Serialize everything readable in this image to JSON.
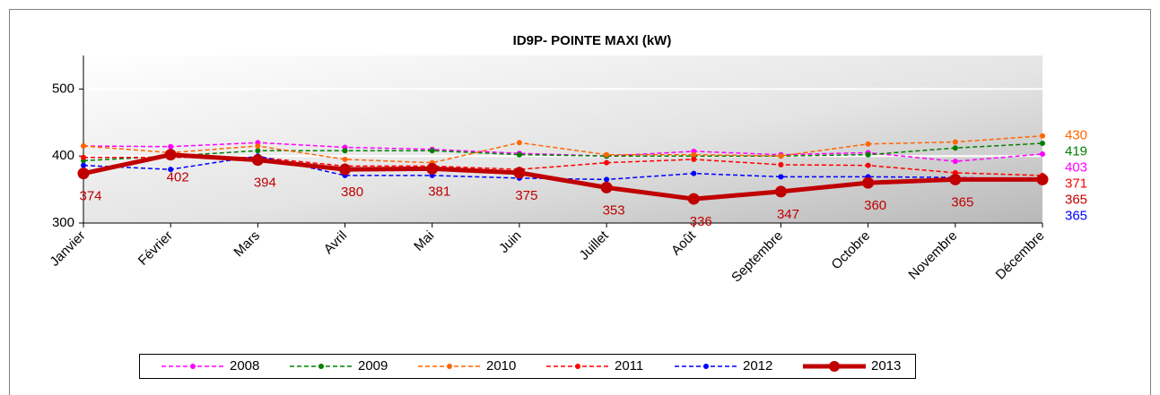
{
  "chart_data": {
    "type": "line",
    "title": "ID9P- POINTE MAXI  (kW)",
    "categories": [
      "Janvier",
      "Février",
      "Mars",
      "Avril",
      "Mai",
      "Juin",
      "Juillet",
      "Août",
      "Septembre",
      "Octobre",
      "Novembre",
      "Décembre"
    ],
    "ylim": [
      300,
      550
    ],
    "yticks": [
      300,
      400,
      500
    ],
    "grid": true,
    "legend": "bottom",
    "series": [
      {
        "name": "2008",
        "color": "#ff00ff",
        "dashed": true,
        "data_labels": "last",
        "values": [
          415,
          414,
          420,
          413,
          410,
          404,
          400,
          407,
          402,
          405,
          392,
          403
        ]
      },
      {
        "name": "2009",
        "color": "#008000",
        "dashed": true,
        "data_labels": "last",
        "values": [
          393,
          400,
          408,
          408,
          408,
          402,
          400,
          400,
          400,
          402,
          412,
          419
        ]
      },
      {
        "name": "2010",
        "color": "#ff6600",
        "dashed": true,
        "data_labels": "last",
        "values": [
          415,
          405,
          415,
          395,
          390,
          420,
          402,
          402,
          400,
          418,
          421,
          430
        ]
      },
      {
        "name": "2011",
        "color": "#ff0000",
        "dashed": true,
        "data_labels": "last",
        "values": [
          398,
          398,
          398,
          385,
          385,
          380,
          390,
          395,
          387,
          386,
          375,
          371
        ]
      },
      {
        "name": "2012",
        "color": "#0000ff",
        "dashed": true,
        "data_labels": "last",
        "values": [
          386,
          380,
          400,
          371,
          371,
          367,
          365,
          374,
          369,
          369,
          368,
          365
        ]
      },
      {
        "name": "2013",
        "color": "#c00000",
        "dashed": false,
        "data_labels": "all",
        "values": [
          374,
          402,
          394,
          380,
          381,
          375,
          353,
          336,
          347,
          360,
          365,
          365
        ]
      }
    ]
  }
}
